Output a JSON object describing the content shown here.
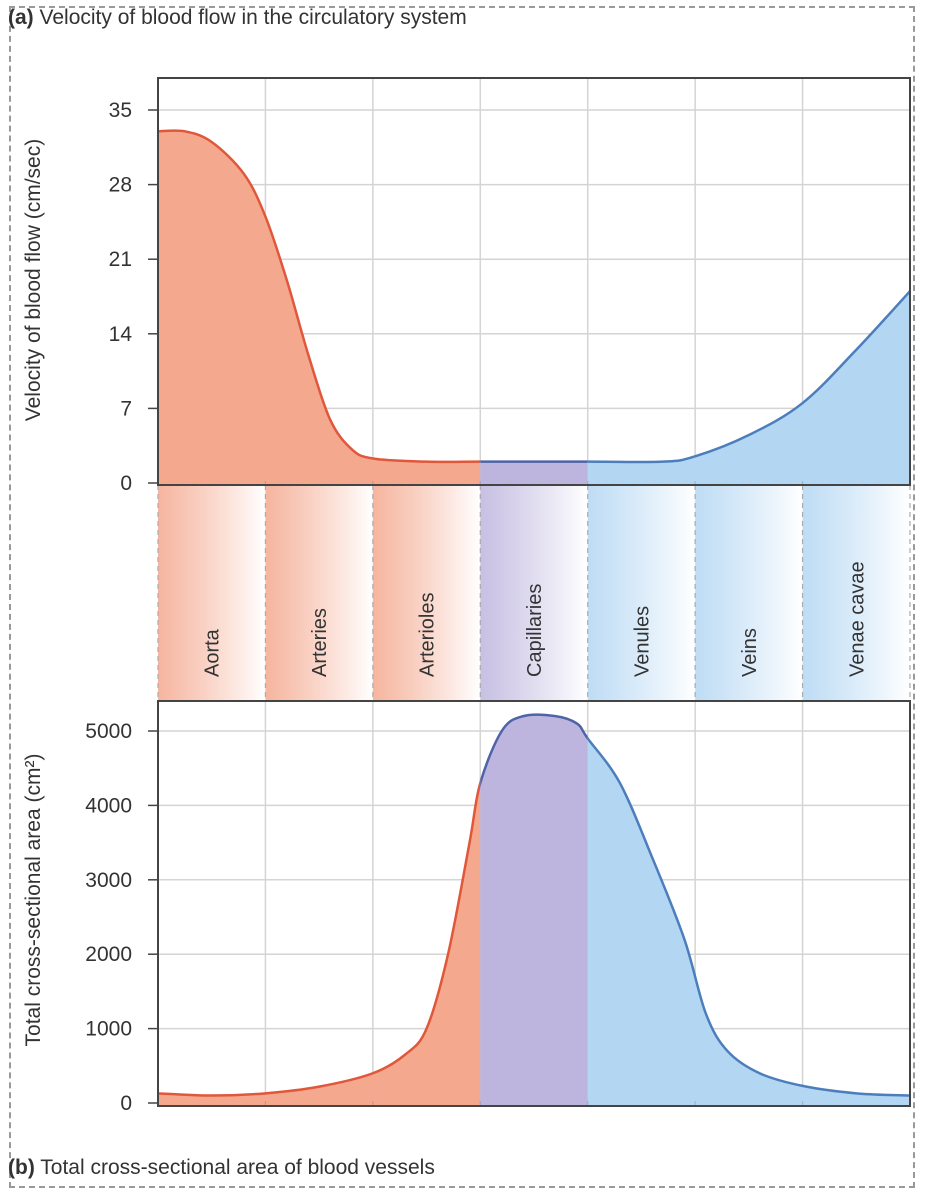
{
  "captions": {
    "a_prefix": "(a)",
    "a_text": "Velocity of blood flow in the circulatory system",
    "b_prefix": "(b)",
    "b_text": "Total cross-sectional area of blood vessels"
  },
  "colors": {
    "arterial_fill": "#f4a88e",
    "arterial_line": "#e0573a",
    "capillary_fill": "#bdb5de",
    "capillary_line": "#4f63a8",
    "venous_fill": "#b3d6f3",
    "venous_line": "#4d7ebc",
    "grid": "#d4d4d4",
    "axis": "#444444"
  },
  "chart_data": [
    {
      "type": "area",
      "title": "Velocity of blood flow in the circulatory system",
      "xlabel": "",
      "ylabel": "Velocity of blood flow (cm/sec)",
      "categories": [
        "Aorta",
        "Arteries",
        "Arterioles",
        "Capillaries",
        "Venules",
        "Veins",
        "Venae cavae"
      ],
      "ylim": [
        0,
        38
      ],
      "yticks": [
        0,
        7,
        14,
        21,
        28,
        35
      ],
      "grid": true,
      "x": [
        0,
        0.25,
        0.5,
        0.8,
        1.0,
        1.2,
        1.4,
        1.6,
        1.8,
        2.0,
        2.5,
        3.0,
        4.0,
        4.7,
        5.0,
        5.5,
        6.0,
        6.5,
        7.0
      ],
      "y": [
        33,
        33,
        32,
        29,
        25,
        19,
        12,
        6,
        3.2,
        2.3,
        2,
        2,
        2,
        2,
        2.5,
        4.5,
        7.5,
        12.5,
        18
      ]
    },
    {
      "type": "area",
      "title": "Total cross-sectional area of blood vessels",
      "xlabel": "",
      "ylabel": "Total cross-sectional area (cm²)",
      "categories": [
        "Aorta",
        "Arteries",
        "Arterioles",
        "Capillaries",
        "Venules",
        "Veins",
        "Venae cavae"
      ],
      "ylim": [
        0,
        5450
      ],
      "yticks": [
        0,
        1000,
        2000,
        3000,
        4000,
        5000
      ],
      "grid": true,
      "x": [
        0,
        0.5,
        1.0,
        1.5,
        2.0,
        2.3,
        2.5,
        2.7,
        2.9,
        3.0,
        3.2,
        3.4,
        3.7,
        3.9,
        4.0,
        4.3,
        4.6,
        4.9,
        5.1,
        5.3,
        5.6,
        6.0,
        6.5,
        7.0
      ],
      "y": [
        130,
        100,
        130,
        220,
        400,
        650,
        1000,
        2000,
        3500,
        4300,
        5000,
        5200,
        5200,
        5100,
        4900,
        4300,
        3300,
        2200,
        1200,
        700,
        400,
        230,
        130,
        100
      ]
    }
  ]
}
